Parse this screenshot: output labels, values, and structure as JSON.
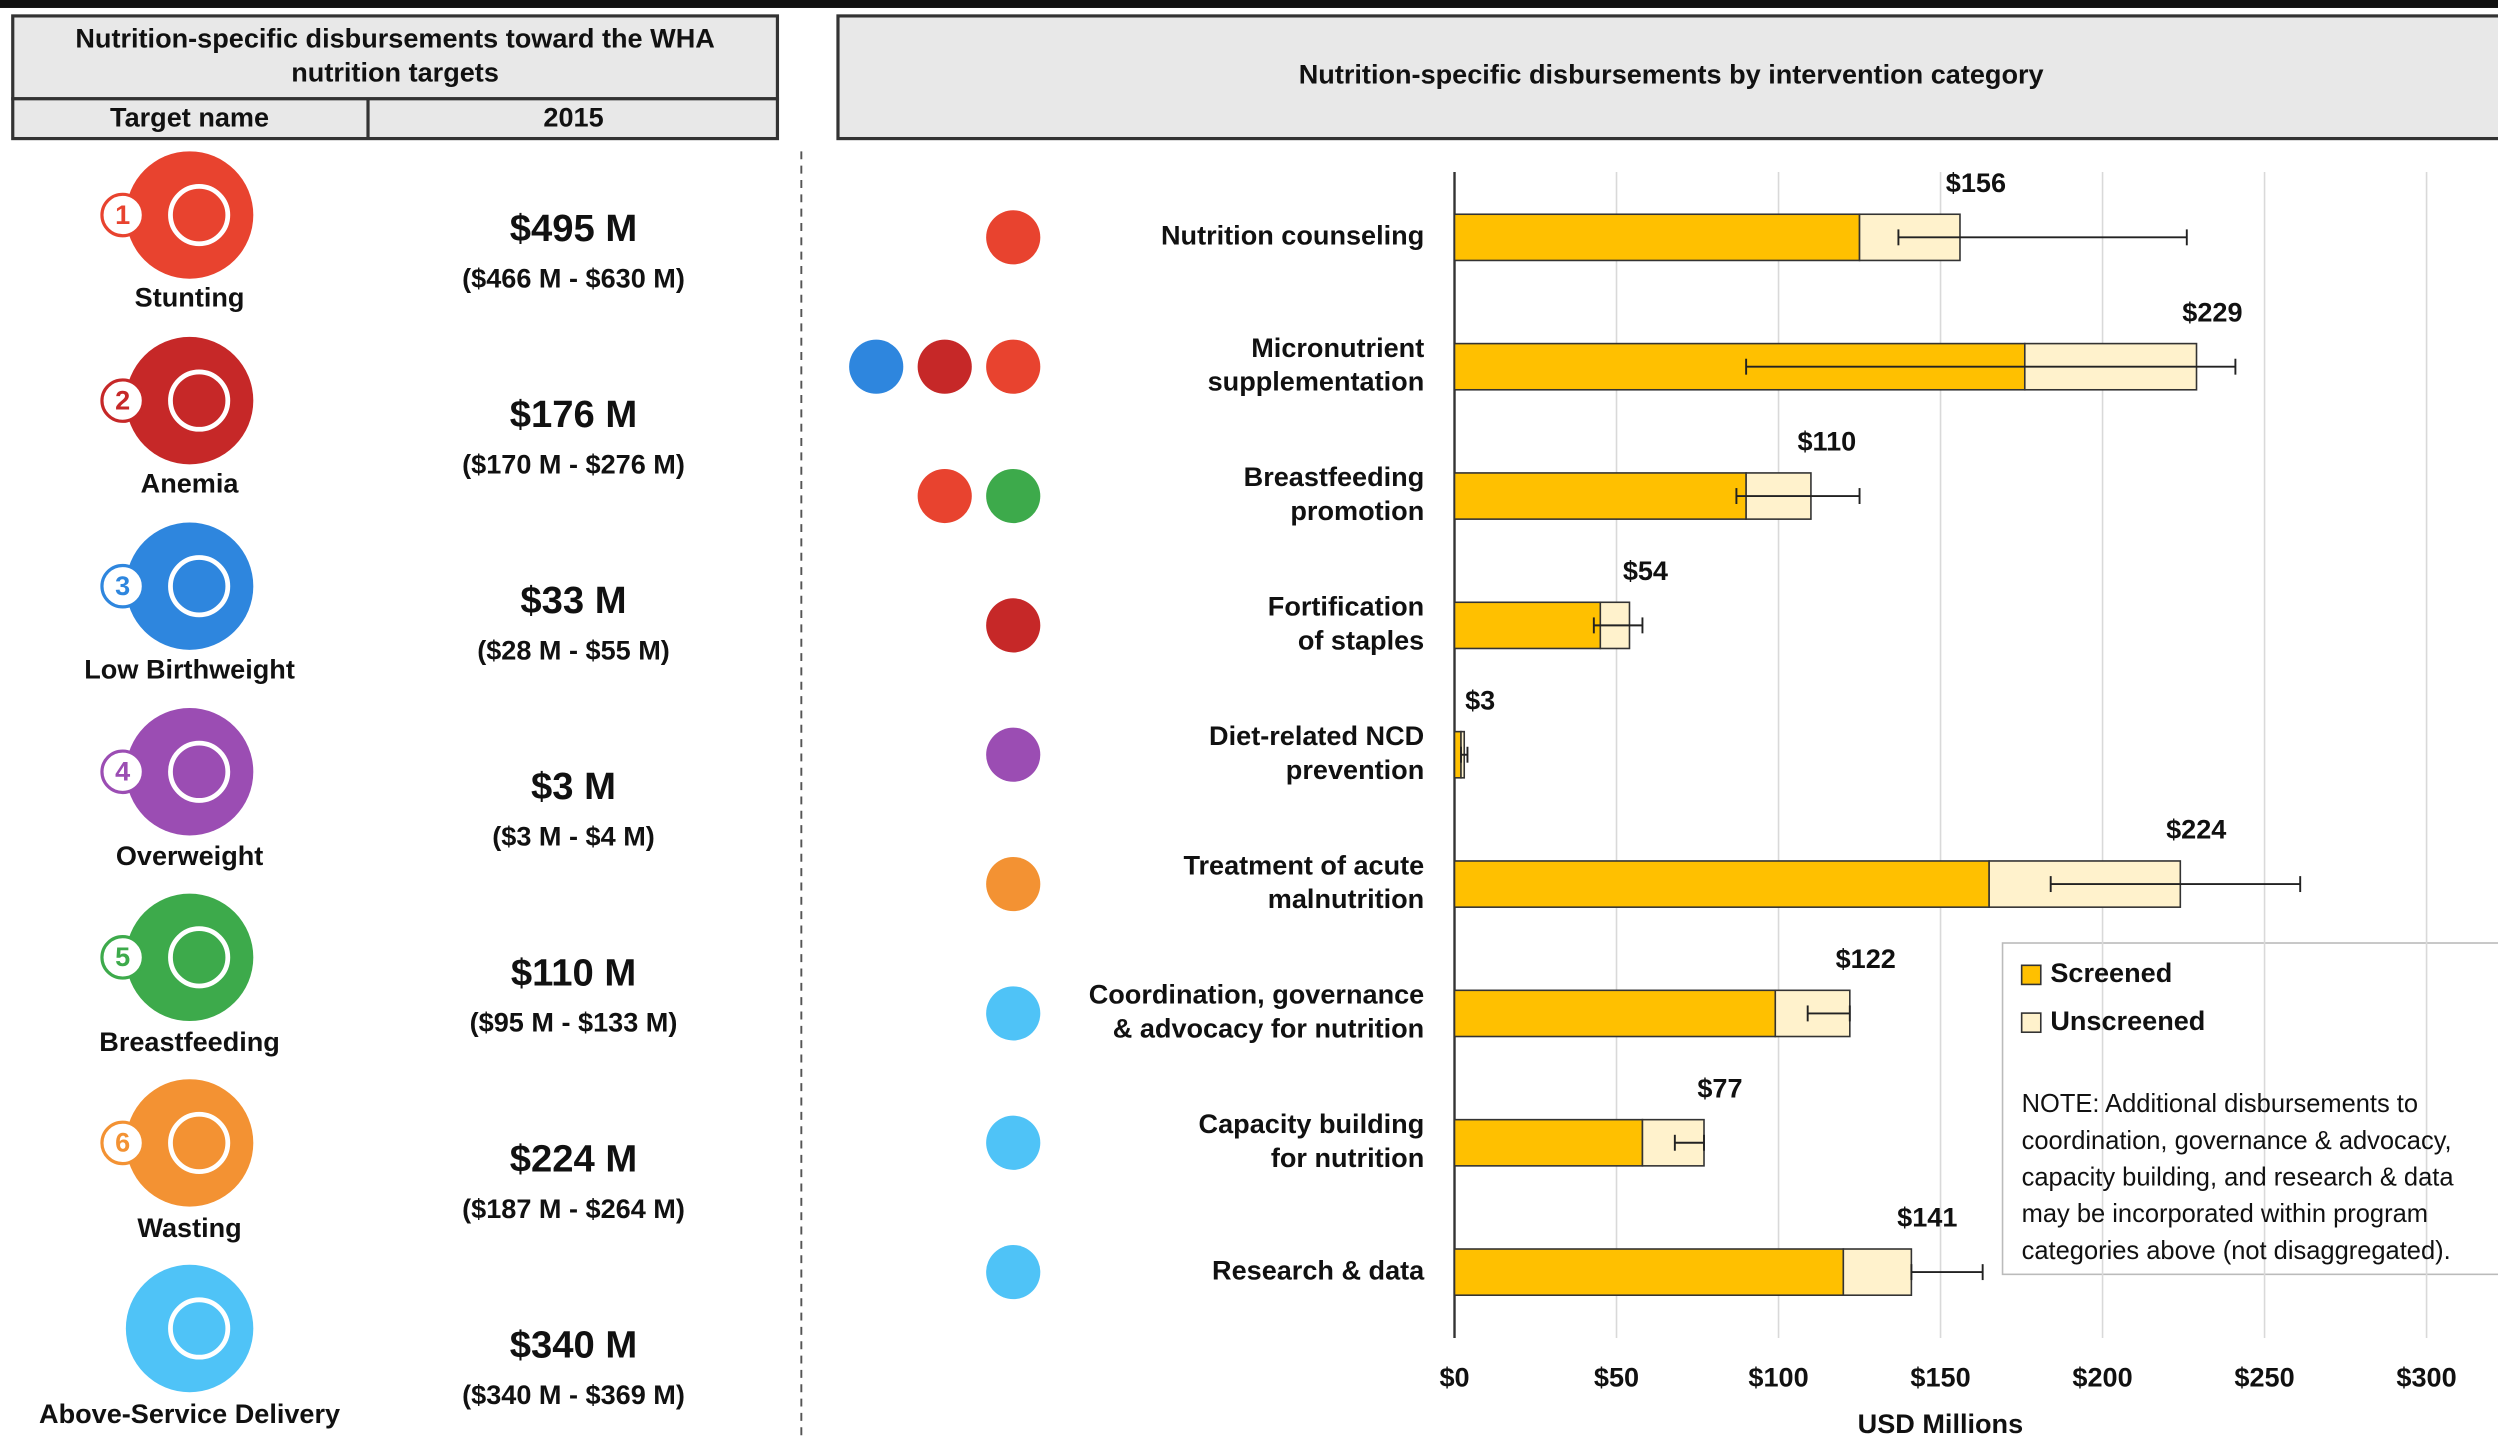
{
  "table": {
    "title": "Nutrition-specific disbursements toward the WHA\nnutrition targets",
    "columns": [
      "Target name",
      "2015"
    ],
    "rows": [
      {
        "badge": "1",
        "name": "Stunting",
        "value": "$495 M",
        "range": "($466 M - $630 M)"
      },
      {
        "badge": "2",
        "name": "Anemia",
        "value": "$176 M",
        "range": "($170 M - $276 M)"
      },
      {
        "badge": "3",
        "name": "Low Birthweight",
        "value": "$33 M",
        "range": "($28 M - $55 M)"
      },
      {
        "badge": "4",
        "name": "Overweight",
        "value": "$3 M",
        "range": "($3 M - $4 M)"
      },
      {
        "badge": "5",
        "name": "Breastfeeding",
        "value": "$110 M",
        "range": "($95 M - $133 M)"
      },
      {
        "badge": "6",
        "name": "Wasting",
        "value": "$224 M",
        "range": "($187 M - $264 M)"
      },
      {
        "name": "Above-Service Delivery",
        "value": "$340 M",
        "range": "($340 M - $369 M)"
      }
    ]
  },
  "chart_data": {
    "type": "stacked-barh",
    "title": "Nutrition-specific disbursements by intervention category",
    "categories": [
      "Nutrition counseling",
      "Micronutrient\nsupplementation",
      "Breastfeeding\npromotion",
      "Fortification\nof staples",
      "Diet-related NCD\nprevention",
      "Treatment of acute\nmalnutrition",
      "Coordination, governance\n& advocacy for nutrition",
      "Capacity building\nfor nutrition",
      "Research & data"
    ],
    "series": [
      {
        "name": "Screened",
        "color": "#FFC000",
        "values": [
          125,
          176,
          90,
          45,
          2,
          165,
          99,
          58,
          120
        ]
      },
      {
        "name": "Unscreened",
        "color": "#FFF2CC",
        "values": [
          31,
          53,
          20,
          9,
          1,
          59,
          23,
          19,
          21
        ]
      }
    ],
    "totals": {
      "values": [
        156,
        229,
        110,
        54,
        3,
        224,
        122,
        77,
        141
      ],
      "value_labels": [
        "$156",
        "$229",
        "$110",
        "$54",
        "$3",
        "$224",
        "$122",
        "$77",
        "$141"
      ]
    },
    "error_low": [
      137,
      90,
      87,
      43,
      2,
      184,
      109,
      68,
      141
    ],
    "error_high": [
      226,
      241,
      125,
      58,
      4,
      261,
      122,
      77,
      163
    ],
    "xlim": [
      0,
      310
    ],
    "xticks": [
      {
        "value": 0,
        "label": "$0"
      },
      {
        "value": 50,
        "label": "$50"
      },
      {
        "value": 100,
        "label": "$100"
      },
      {
        "value": 150,
        "label": "$150"
      },
      {
        "value": 200,
        "label": "$200"
      },
      {
        "value": 250,
        "label": "$250"
      },
      {
        "value": 300,
        "label": "$300"
      }
    ],
    "xlabel": "USD Millions",
    "grid": true,
    "legend": "right",
    "note": [
      "NOTE: Additional disbursements to",
      "coordination, governance & advocacy,",
      "capacity building, and research & data",
      "may be incorporated within program",
      "categories above (not disaggregated)."
    ]
  }
}
